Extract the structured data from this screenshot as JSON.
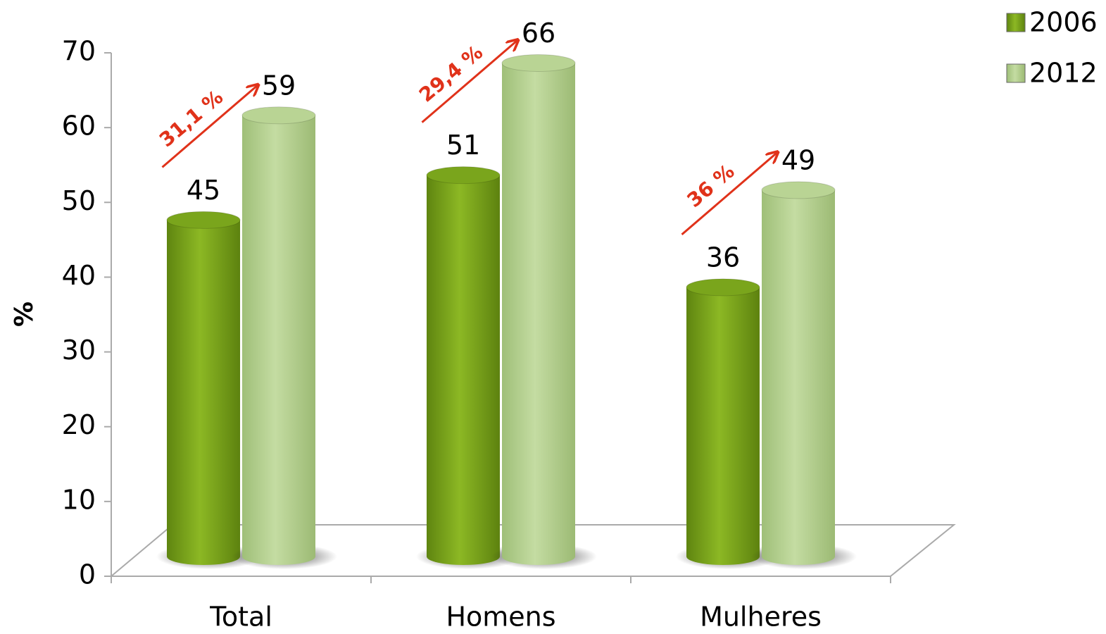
{
  "chart_data": {
    "type": "bar",
    "ylabel": "%",
    "categories": [
      "Total",
      "Homens",
      "Mulheres"
    ],
    "series": [
      {
        "name": "2006",
        "color": "#7aa51c",
        "values": [
          45,
          51,
          36
        ]
      },
      {
        "name": "2012",
        "color": "#b9d494",
        "values": [
          59,
          66,
          49
        ]
      }
    ],
    "annotations": [
      "31,1 %",
      "29,4 %",
      "36 %"
    ],
    "annotation_color": "#e0321a",
    "ylim": [
      0,
      70
    ],
    "yticks": [
      0,
      10,
      20,
      30,
      40,
      50,
      60,
      70
    ],
    "legend": "upper right"
  }
}
